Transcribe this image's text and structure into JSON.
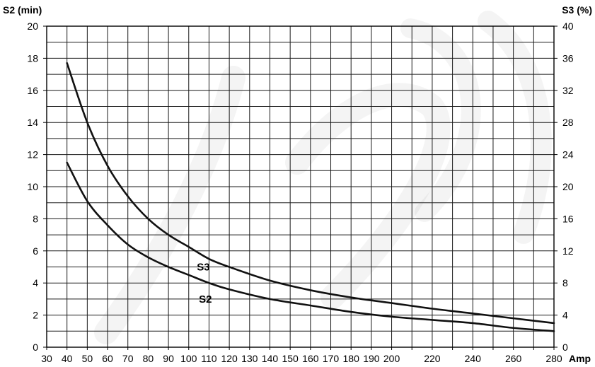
{
  "chart_data": {
    "type": "line",
    "title": "",
    "xlabel": "Amp",
    "ylabel_left": "S2 (min)",
    "ylabel_right": "S3 (%)",
    "xlim": [
      30,
      280
    ],
    "ylim_left": [
      0,
      20
    ],
    "ylim_right": [
      0,
      40
    ],
    "grid": true,
    "x_ticks": [
      "30",
      "40",
      "50",
      "60",
      "70",
      "80",
      "90",
      "100",
      "110",
      "120",
      "130",
      "140",
      "150",
      "160",
      "170",
      "180",
      "190",
      "200",
      "210",
      "220",
      "230",
      "240",
      "250",
      "260",
      "270",
      "280"
    ],
    "x_tick_labels": [
      "30",
      "40",
      "50",
      "60",
      "70",
      "80",
      "90",
      "100",
      "110",
      "120",
      "130",
      "140",
      "150",
      "160",
      "170",
      "180",
      "190",
      "200",
      "220",
      "240",
      "260",
      "280"
    ],
    "y_left_ticks": [
      "0",
      "2",
      "4",
      "6",
      "8",
      "10",
      "12",
      "14",
      "16",
      "18",
      "20"
    ],
    "y_right_ticks": [
      "0",
      "4",
      "8",
      "12",
      "16",
      "20",
      "24",
      "28",
      "32",
      "36",
      "40"
    ],
    "series": [
      {
        "name": "S3",
        "axis": "right",
        "x": [
          40,
          50,
          60,
          70,
          80,
          90,
          100,
          110,
          120,
          140,
          160,
          180,
          200,
          220,
          240,
          260,
          280
        ],
        "y": [
          35.4,
          28.0,
          22.6,
          18.8,
          16.0,
          14.0,
          12.5,
          11.0,
          10.0,
          8.3,
          7.1,
          6.2,
          5.5,
          4.8,
          4.2,
          3.6,
          3.0
        ],
        "label_at": [
          104,
          5.0
        ]
      },
      {
        "name": "S2",
        "axis": "left",
        "x": [
          40,
          50,
          60,
          70,
          80,
          90,
          100,
          110,
          120,
          140,
          160,
          180,
          200,
          220,
          240,
          260,
          280
        ],
        "y": [
          11.5,
          9.1,
          7.6,
          6.4,
          5.6,
          5.0,
          4.5,
          4.0,
          3.6,
          3.0,
          2.6,
          2.2,
          1.9,
          1.7,
          1.5,
          1.2,
          1.0
        ],
        "label_at": [
          105,
          3.0
        ]
      }
    ]
  }
}
